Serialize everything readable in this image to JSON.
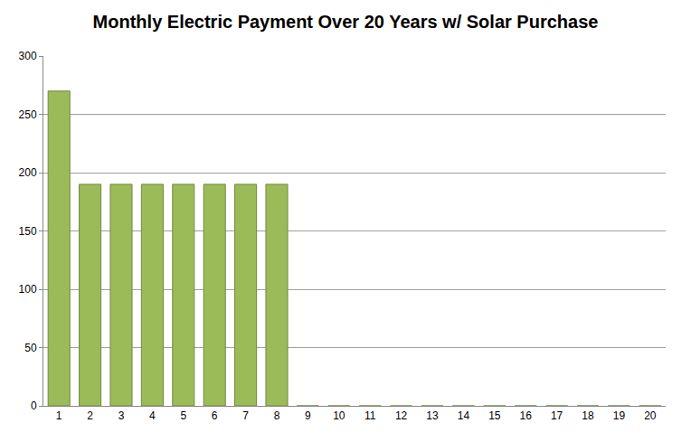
{
  "chart_data": {
    "type": "bar",
    "title": "Monthly Electric Payment Over 20 Years w/ Solar Purchase",
    "categories": [
      "1",
      "2",
      "3",
      "4",
      "5",
      "6",
      "7",
      "8",
      "9",
      "10",
      "11",
      "12",
      "13",
      "14",
      "15",
      "16",
      "17",
      "18",
      "19",
      "20"
    ],
    "values": [
      270,
      190,
      190,
      190,
      190,
      190,
      190,
      190,
      0,
      0,
      0,
      0,
      0,
      0,
      0,
      0,
      0,
      0,
      0,
      0
    ],
    "color": "#9bbb59",
    "ylim": [
      0,
      300
    ],
    "yticks": [
      0,
      50,
      100,
      150,
      200,
      250,
      300
    ],
    "grid": true
  }
}
